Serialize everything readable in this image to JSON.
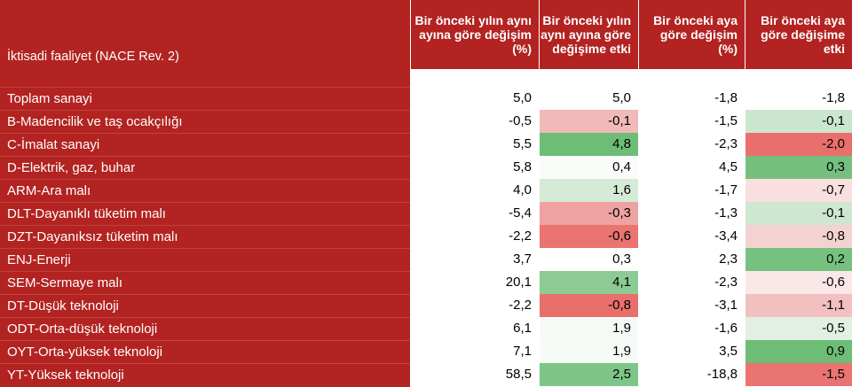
{
  "header": {
    "activity": "İktisadi faaliyet (NACE Rev. 2)",
    "yoy_change": "Bir önceki yılın aynı ayına göre değişim (%)",
    "yoy_contribution": "Bir önceki yılın aynı ayına göre değişime etki",
    "mom_change": "Bir önceki aya göre değişim (%)",
    "mom_contribution": "Bir önceki aya göre değişime etki"
  },
  "rows": [
    {
      "name": "Toplam sanayi",
      "yoy": "5,0",
      "yoy_eff": "5,0",
      "yoy_eff_color": "#ffffff",
      "mom": "-1,8",
      "mom_eff": "-1,8",
      "mom_eff_color": "#ffffff"
    },
    {
      "name": "B-Madencilik ve taş ocakçılığı",
      "yoy": "-0,5",
      "yoy_eff": "-0,1",
      "yoy_eff_color": "#f1b9b8",
      "mom": "-1,5",
      "mom_eff": "-0,1",
      "mom_eff_color": "#cbe6cf"
    },
    {
      "name": "C-İmalat sanayi",
      "yoy": "5,5",
      "yoy_eff": "4,8",
      "yoy_eff_color": "#6dbd77",
      "mom": "-2,3",
      "mom_eff": "-2,0",
      "mom_eff_color": "#e96f6d"
    },
    {
      "name": "D-Elektrik, gaz, buhar",
      "yoy": "5,8",
      "yoy_eff": "0,4",
      "yoy_eff_color": "#fafcfa",
      "mom": "4,5",
      "mom_eff": "0,3",
      "mom_eff_color": "#75c07e"
    },
    {
      "name": "ARM-Ara malı",
      "yoy": "4,0",
      "yoy_eff": "1,6",
      "yoy_eff_color": "#d5ebd8",
      "mom": "-1,7",
      "mom_eff": "-0,7",
      "mom_eff_color": "#f9dfdf"
    },
    {
      "name": "DLT-Dayanıklı tüketim malı",
      "yoy": "-5,4",
      "yoy_eff": "-0,3",
      "yoy_eff_color": "#eea3a2",
      "mom": "-1,3",
      "mom_eff": "-0,1",
      "mom_eff_color": "#cde7d1"
    },
    {
      "name": "DZT-Dayanıksız tüketim malı",
      "yoy": "-2,2",
      "yoy_eff": "-0,6",
      "yoy_eff_color": "#e97472",
      "mom": "-3,4",
      "mom_eff": "-0,8",
      "mom_eff_color": "#f5d2d2"
    },
    {
      "name": "ENJ-Enerji",
      "yoy": "3,7",
      "yoy_eff": "0,3",
      "yoy_eff_color": "#ffffff",
      "mom": "2,3",
      "mom_eff": "0,2",
      "mom_eff_color": "#77c180"
    },
    {
      "name": "SEM-Sermaye malı",
      "yoy": "20,1",
      "yoy_eff": "4,1",
      "yoy_eff_color": "#8ccb93",
      "mom": "-2,3",
      "mom_eff": "-0,6",
      "mom_eff_color": "#fae7e7"
    },
    {
      "name": "DT-Düşük teknoloji",
      "yoy": "-2,2",
      "yoy_eff": "-0,8",
      "yoy_eff_color": "#e96f6d",
      "mom": "-3,1",
      "mom_eff": "-1,1",
      "mom_eff_color": "#f2c0bf"
    },
    {
      "name": "ODT-Orta-düşük teknoloji",
      "yoy": "6,1",
      "yoy_eff": "1,9",
      "yoy_eff_color": "#f6faf6",
      "mom": "-1,6",
      "mom_eff": "-0,5",
      "mom_eff_color": "#e1f0e3"
    },
    {
      "name": "OYT-Orta-yüksek teknoloji",
      "yoy": "7,1",
      "yoy_eff": "1,9",
      "yoy_eff_color": "#f7fbf7",
      "mom": "3,5",
      "mom_eff": "0,9",
      "mom_eff_color": "#6dbd77"
    },
    {
      "name": "YT-Yüksek teknoloji",
      "yoy": "58,5",
      "yoy_eff": "2,5",
      "yoy_eff_color": "#7fc587",
      "mom": "-18,8",
      "mom_eff": "-1,5",
      "mom_eff_color": "#e97472"
    }
  ]
}
